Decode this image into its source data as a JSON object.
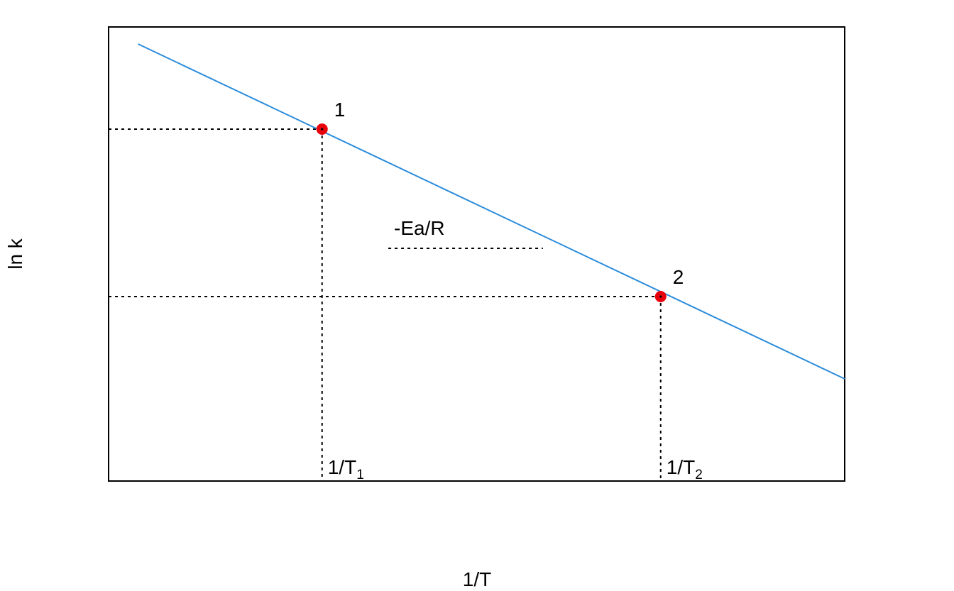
{
  "chart_data": {
    "type": "line",
    "title": "",
    "xlabel": "1/T",
    "ylabel": "ln k",
    "grid": false,
    "axes_shown": false,
    "xlim": [
      0,
      10
    ],
    "ylim": [
      0,
      8
    ],
    "line": {
      "color": "#2b8cdc",
      "x": [
        0.4,
        10.0
      ],
      "y": [
        7.7,
        1.8
      ]
    },
    "points": [
      {
        "label": "1",
        "x": 2.9,
        "y": 6.2,
        "color": "#e8000b"
      },
      {
        "label": "2",
        "x": 7.5,
        "y": 3.25,
        "color": "#e8000b"
      }
    ],
    "x_markers": [
      {
        "main": "1/T",
        "sub": "1",
        "x": 2.9
      },
      {
        "main": "1/T",
        "sub": "2",
        "x": 7.5
      }
    ],
    "slope_annotation": {
      "text": "-Ea/R",
      "x": 3.8,
      "y": 4.1,
      "x_end": 5.9
    }
  }
}
